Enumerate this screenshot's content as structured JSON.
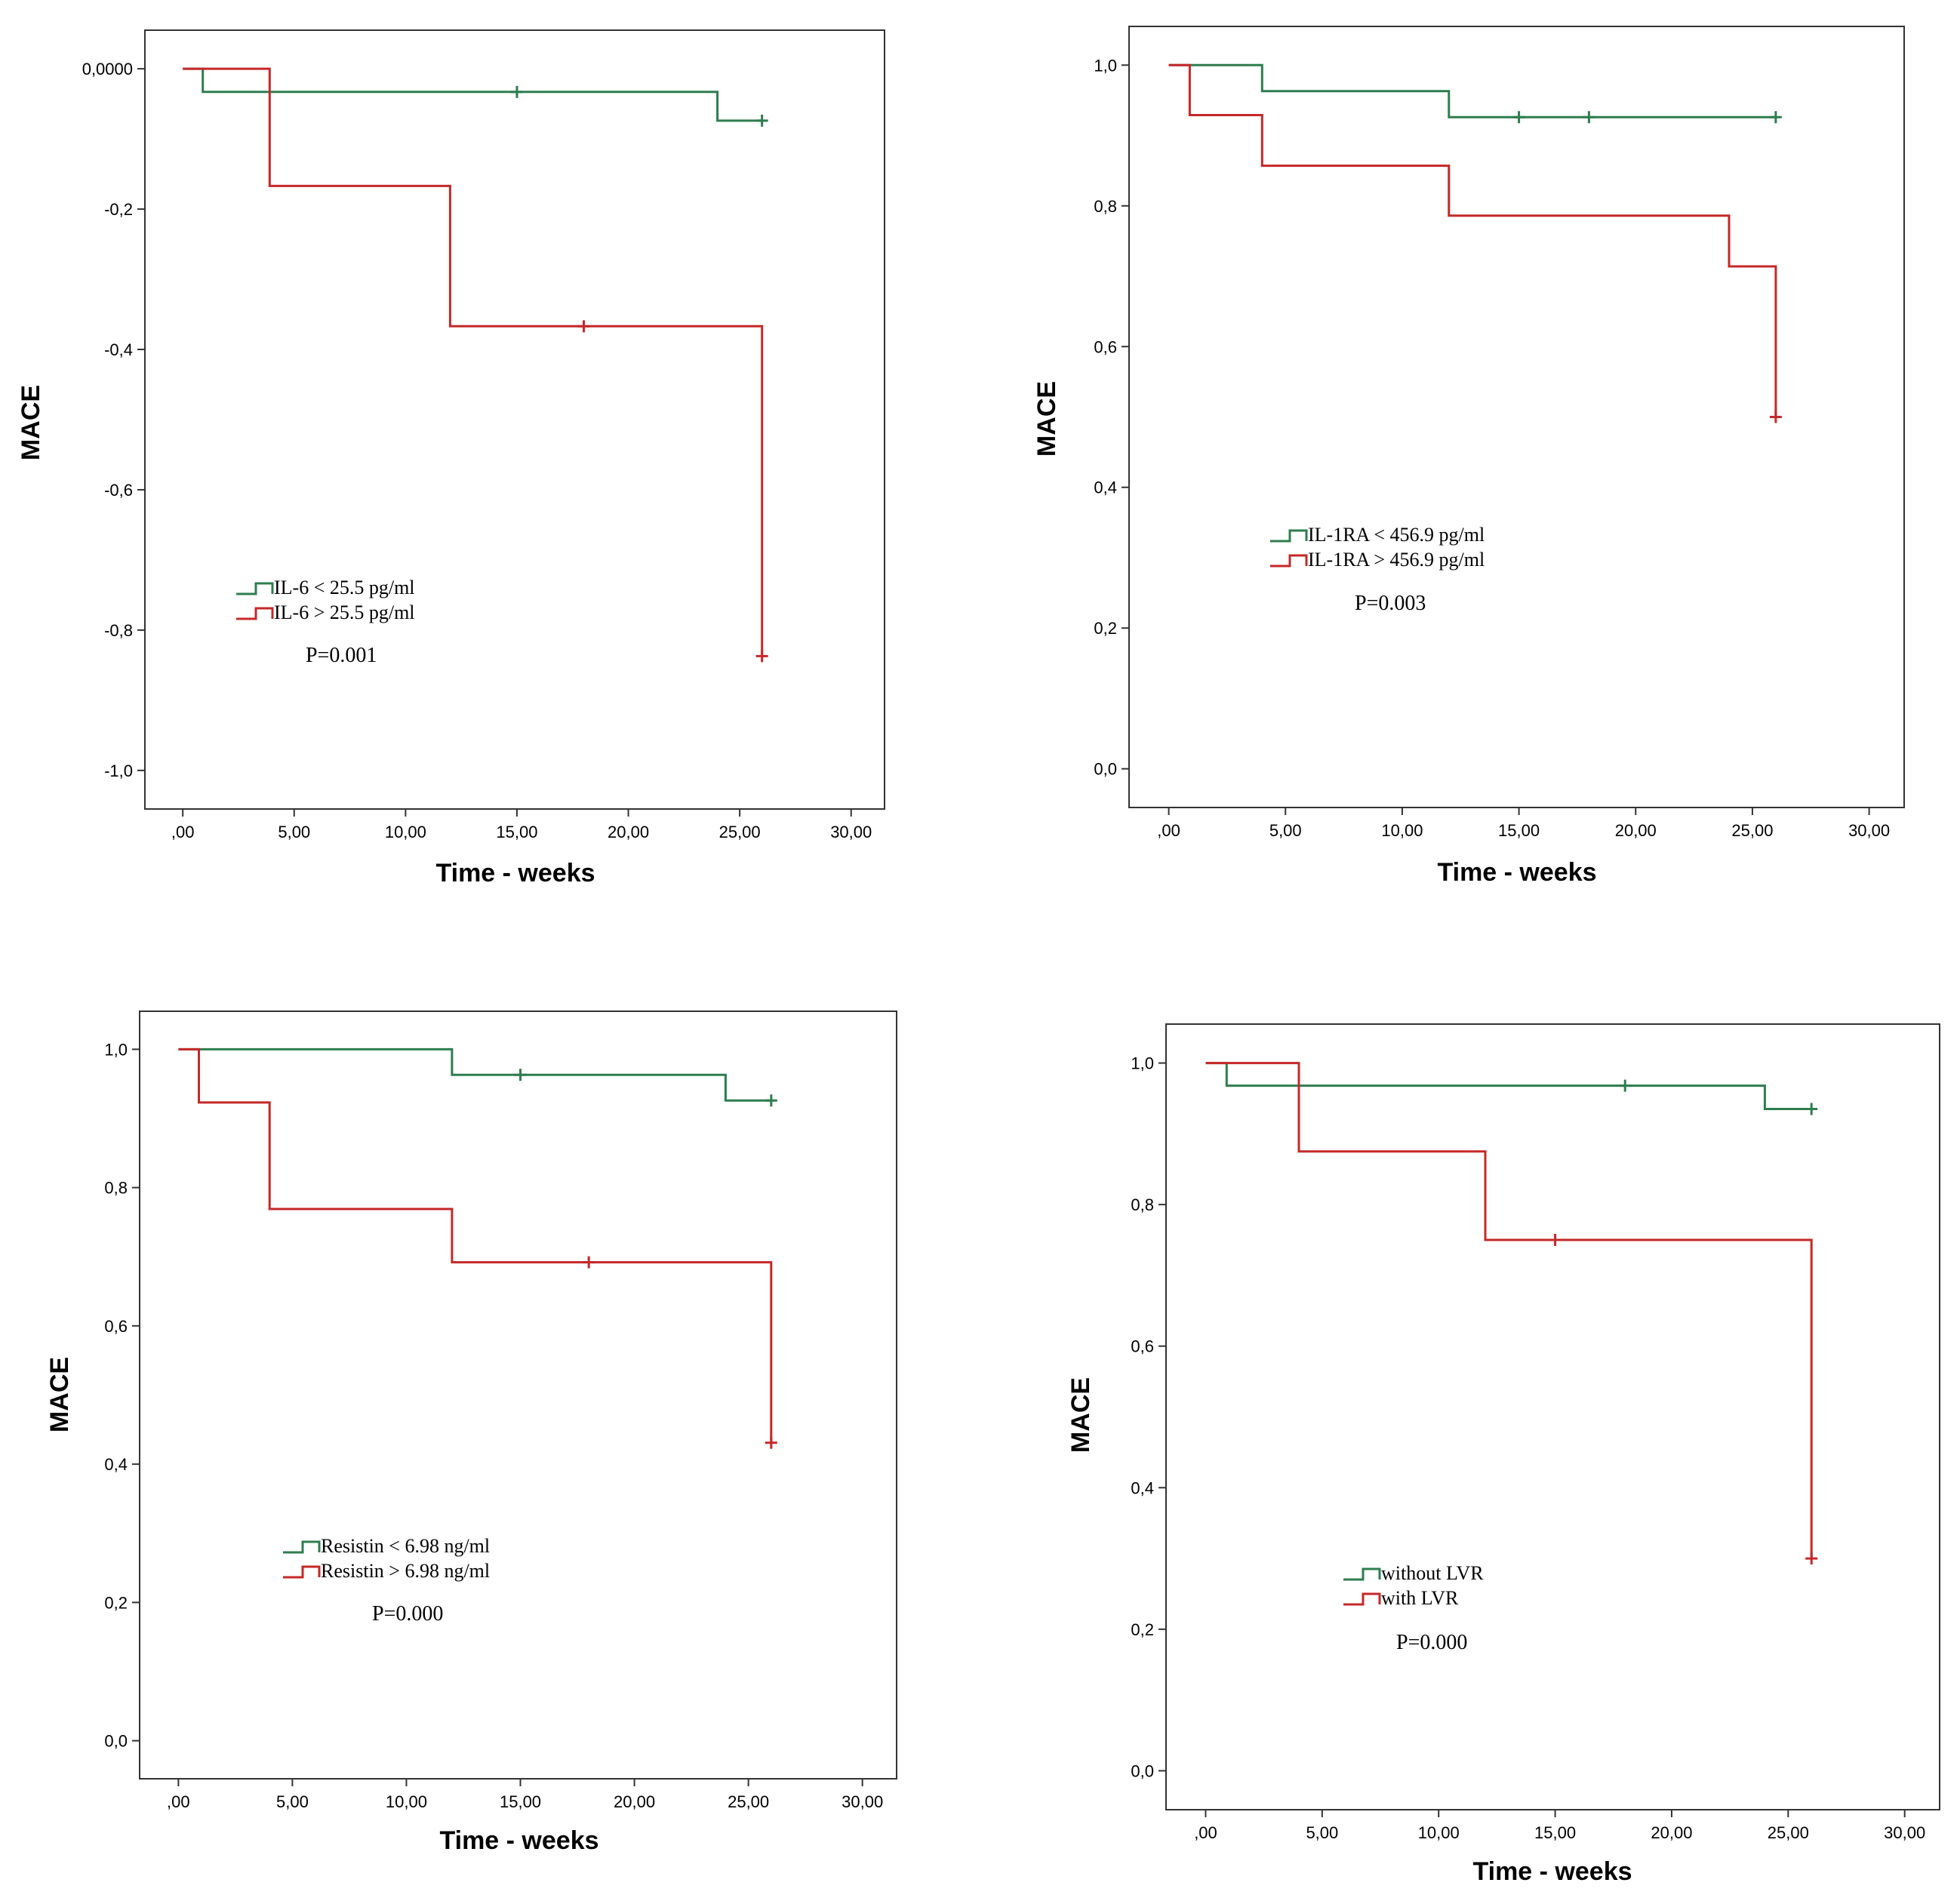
{
  "chart_data": [
    {
      "type": "line",
      "step": true,
      "ylabel": "MACE",
      "xlabel": "Time - weeks",
      "xlim": [
        -1.7,
        31.5
      ],
      "ylim": [
        -1.055,
        0.055
      ],
      "x_ticks": [
        0,
        5,
        10,
        15,
        20,
        25,
        30
      ],
      "x_tick_labels": [
        ",00",
        "5,00",
        "10,00",
        "15,00",
        "20,00",
        "25,00",
        "30,00"
      ],
      "y_ticks": [
        0,
        -0.2,
        -0.4,
        -0.6,
        -0.8,
        -1.0
      ],
      "y_tick_labels": [
        "0,0000",
        "-0,2",
        "-0,4",
        "-0,6",
        "-0,8",
        "-1,0"
      ],
      "series": [
        {
          "name": "IL-6 < 25.5 pg/ml",
          "color": "#2e7d4f",
          "x": [
            0,
            0.9,
            0.9,
            24,
            24,
            26
          ],
          "y": [
            0,
            0,
            -0.033,
            -0.033,
            -0.074,
            -0.074
          ],
          "censored": [
            [
              15,
              -0.033
            ],
            [
              26,
              -0.074
            ]
          ]
        },
        {
          "name": "IL-6 > 25.5 pg/ml",
          "color": "#c62828",
          "x": [
            0,
            3.9,
            3.9,
            12,
            12,
            26,
            26
          ],
          "y": [
            0,
            0,
            -0.167,
            -0.167,
            -0.367,
            -0.367,
            -0.837
          ],
          "censored": [
            [
              18,
              -0.367
            ],
            [
              26,
              -0.837
            ]
          ]
        }
      ],
      "pvalue": "P=0.001"
    },
    {
      "type": "line",
      "step": true,
      "ylabel": "MACE",
      "xlabel": "Time - weeks",
      "xlim": [
        -1.7,
        31.5
      ],
      "ylim": [
        -0.055,
        1.055
      ],
      "x_ticks": [
        0,
        5,
        10,
        15,
        20,
        25,
        30
      ],
      "x_tick_labels": [
        ",00",
        "5,00",
        "10,00",
        "15,00",
        "20,00",
        "25,00",
        "30,00"
      ],
      "y_ticks": [
        0,
        0.2,
        0.4,
        0.6,
        0.8,
        1.0
      ],
      "y_tick_labels": [
        "0,0",
        "0,2",
        "0,4",
        "0,6",
        "0,8",
        "1,0"
      ],
      "series": [
        {
          "name": "IL-1RA < 456.9 pg/ml",
          "color": "#2e7d4f",
          "x": [
            0,
            4,
            4,
            12,
            12,
            26
          ],
          "y": [
            1,
            1,
            0.963,
            0.963,
            0.926,
            0.926
          ],
          "censored": [
            [
              15,
              0.926
            ],
            [
              18,
              0.926
            ],
            [
              26,
              0.926
            ]
          ]
        },
        {
          "name": "IL-1RA > 456.9 pg/ml",
          "color": "#c62828",
          "x": [
            0,
            0.9,
            0.9,
            4,
            4,
            12,
            12,
            24,
            24,
            26,
            26
          ],
          "y": [
            1,
            1,
            0.929,
            0.929,
            0.857,
            0.857,
            0.786,
            0.786,
            0.714,
            0.714,
            0.5
          ],
          "censored": [
            [
              26,
              0.5
            ]
          ]
        }
      ],
      "pvalue": "P=0.003"
    },
    {
      "type": "line",
      "step": true,
      "ylabel": "MACE",
      "xlabel": "Time - weeks",
      "xlim": [
        -1.7,
        31.5
      ],
      "ylim": [
        -0.055,
        1.055
      ],
      "x_ticks": [
        0,
        5,
        10,
        15,
        20,
        25,
        30
      ],
      "x_tick_labels": [
        ",00",
        "5,00",
        "10,00",
        "15,00",
        "20,00",
        "25,00",
        "30,00"
      ],
      "y_ticks": [
        0,
        0.2,
        0.4,
        0.6,
        0.8,
        1.0
      ],
      "y_tick_labels": [
        "0,0",
        "0,2",
        "0,4",
        "0,6",
        "0,8",
        "1,0"
      ],
      "series": [
        {
          "name": "Resistin < 6.98 ng/ml",
          "color": "#2e7d4f",
          "x": [
            0,
            12,
            12,
            24,
            24,
            26
          ],
          "y": [
            1,
            1,
            0.963,
            0.963,
            0.926,
            0.926
          ],
          "censored": [
            [
              15,
              0.963
            ],
            [
              26,
              0.926
            ]
          ]
        },
        {
          "name": "Resistin > 6.98 ng/ml",
          "color": "#c62828",
          "x": [
            0,
            0.9,
            0.9,
            4,
            4,
            12,
            12,
            26,
            26
          ],
          "y": [
            1,
            1,
            0.923,
            0.923,
            0.769,
            0.769,
            0.692,
            0.692,
            0.431
          ],
          "censored": [
            [
              18,
              0.692
            ],
            [
              26,
              0.431
            ]
          ]
        }
      ],
      "pvalue": "P=0.000"
    },
    {
      "type": "line",
      "step": true,
      "ylabel": "MACE",
      "xlabel": "Time - weeks",
      "xlim": [
        -1.7,
        31.5
      ],
      "ylim": [
        -0.055,
        1.055
      ],
      "x_ticks": [
        0,
        5,
        10,
        15,
        20,
        25,
        30
      ],
      "x_tick_labels": [
        ",00",
        "5,00",
        "10,00",
        "15,00",
        "20,00",
        "25,00",
        "30,00"
      ],
      "y_ticks": [
        0,
        0.2,
        0.4,
        0.6,
        0.8,
        1.0
      ],
      "y_tick_labels": [
        "0,0",
        "0,2",
        "0,4",
        "0,6",
        "0,8",
        "1,0"
      ],
      "series": [
        {
          "name": "without LVR",
          "color": "#2e7d4f",
          "x": [
            0,
            0.9,
            0.9,
            24,
            24,
            26
          ],
          "y": [
            1,
            1,
            0.968,
            0.968,
            0.935,
            0.935
          ],
          "censored": [
            [
              18,
              0.968
            ],
            [
              26,
              0.935
            ]
          ]
        },
        {
          "name": "with LVR",
          "color": "#c62828",
          "x": [
            0,
            4,
            4,
            12,
            12,
            26,
            26
          ],
          "y": [
            1,
            1,
            0.875,
            0.875,
            0.75,
            0.75,
            0.3
          ],
          "censored": [
            [
              15,
              0.75
            ],
            [
              26,
              0.3
            ]
          ]
        }
      ],
      "pvalue": "P=0.000"
    }
  ]
}
